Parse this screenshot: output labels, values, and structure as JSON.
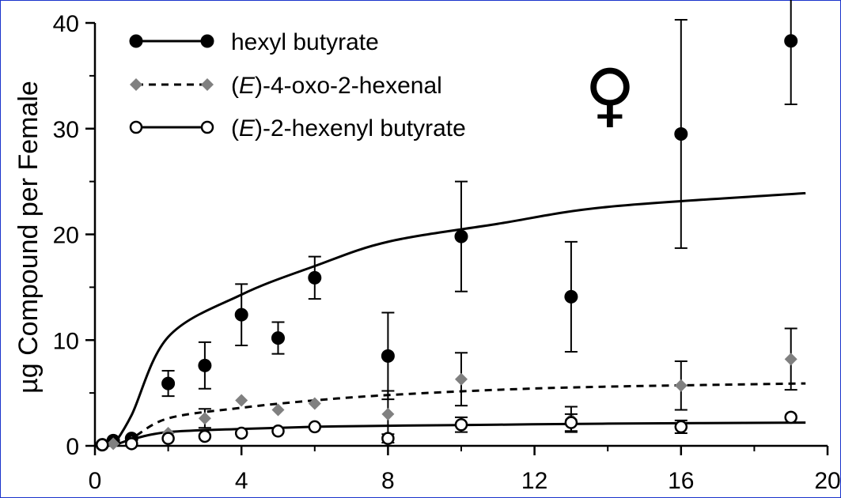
{
  "chart_data": {
    "type": "scatter",
    "ylabel": "µg Compound per Female",
    "xlabel": "",
    "xlim": [
      0,
      20
    ],
    "ylim": [
      0,
      40
    ],
    "xticks": [
      0,
      4,
      8,
      12,
      16,
      20
    ],
    "yticks": [
      0,
      10,
      20,
      30,
      40
    ],
    "annotation": "♀",
    "legend_position": "top-left",
    "series": [
      {
        "name": "hexyl butyrate",
        "marker": "filled-circle",
        "line": "solid",
        "color": "#000000",
        "points": [
          {
            "x": 0.2,
            "y": 0.1,
            "err": 0
          },
          {
            "x": 0.5,
            "y": 0.5,
            "err": 0
          },
          {
            "x": 1,
            "y": 0.7,
            "err": 0
          },
          {
            "x": 2,
            "y": 5.9,
            "err": 1.2
          },
          {
            "x": 3,
            "y": 7.6,
            "err": 2.2
          },
          {
            "x": 4,
            "y": 12.4,
            "err": 2.9
          },
          {
            "x": 5,
            "y": 10.2,
            "err": 1.5
          },
          {
            "x": 6,
            "y": 15.9,
            "err": 2.0
          },
          {
            "x": 8,
            "y": 8.5,
            "err": 4.1
          },
          {
            "x": 10,
            "y": 19.8,
            "err": 5.2
          },
          {
            "x": 13,
            "y": 14.1,
            "err": 5.2
          },
          {
            "x": 16,
            "y": 29.5,
            "err": 10.8
          },
          {
            "x": 19,
            "y": 38.3,
            "err": 6.0
          }
        ],
        "fit_y": [
          0,
          2.9,
          10.3,
          14.3,
          17.0,
          19.3,
          21.0,
          22.6,
          23.9
        ]
      },
      {
        "name": "(E)-4-oxo-2-hexenal",
        "marker": "diamond",
        "line": "dashed",
        "color": "#808080",
        "points": [
          {
            "x": 0.5,
            "y": 0.2,
            "err": 0
          },
          {
            "x": 1,
            "y": 0.3,
            "err": 0
          },
          {
            "x": 2,
            "y": 1.2,
            "err": 0
          },
          {
            "x": 3,
            "y": 2.6,
            "err": 0.9
          },
          {
            "x": 4,
            "y": 4.3,
            "err": 0
          },
          {
            "x": 5,
            "y": 3.4,
            "err": 0
          },
          {
            "x": 6,
            "y": 4.0,
            "err": 0
          },
          {
            "x": 8,
            "y": 3.0,
            "err": 2.2
          },
          {
            "x": 10,
            "y": 6.3,
            "err": 2.5
          },
          {
            "x": 13,
            "y": 2.5,
            "err": 1.2
          },
          {
            "x": 16,
            "y": 5.7,
            "err": 2.3
          },
          {
            "x": 19,
            "y": 8.2,
            "err": 2.9
          }
        ],
        "fit_y": [
          0,
          0.7,
          2.6,
          3.6,
          4.3,
          4.8,
          5.3,
          5.6,
          5.9
        ]
      },
      {
        "name": "(E)-2-hexenyl butyrate",
        "marker": "open-circle",
        "line": "solid",
        "color": "#000000",
        "points": [
          {
            "x": 0.2,
            "y": 0.1,
            "err": 0
          },
          {
            "x": 1,
            "y": 0.2,
            "err": 0
          },
          {
            "x": 2,
            "y": 0.7,
            "err": 0
          },
          {
            "x": 3,
            "y": 0.9,
            "err": 0
          },
          {
            "x": 4,
            "y": 1.2,
            "err": 0
          },
          {
            "x": 5,
            "y": 1.4,
            "err": 0
          },
          {
            "x": 6,
            "y": 1.8,
            "err": 0
          },
          {
            "x": 8,
            "y": 0.7,
            "err": 0.4
          },
          {
            "x": 10,
            "y": 2.0,
            "err": 0.7
          },
          {
            "x": 13,
            "y": 2.2,
            "err": 0.8
          },
          {
            "x": 16,
            "y": 1.8,
            "err": 0.6
          },
          {
            "x": 19,
            "y": 2.7,
            "err": 0
          }
        ],
        "fit_y": [
          0,
          0.6,
          1.3,
          1.6,
          1.8,
          1.9,
          2.0,
          2.1,
          2.2
        ]
      }
    ],
    "fit_x": [
      0.5,
      1,
      2,
      4,
      6,
      8,
      11,
      14,
      19.4
    ]
  }
}
